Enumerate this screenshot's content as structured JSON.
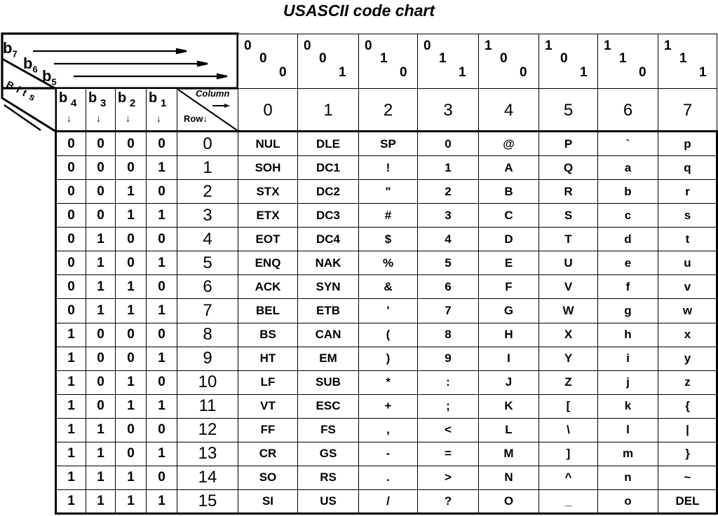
{
  "title": "USASCII code chart",
  "corner": {
    "b7": "b",
    "b7_sub": "7",
    "b6": "b",
    "b6_sub": "6",
    "b5": "b",
    "b5_sub": "5",
    "bits_label": "Bits",
    "column_label": "Column",
    "row_label": "Row"
  },
  "bit_headers": [
    {
      "label": "b",
      "sub": "4"
    },
    {
      "label": "b",
      "sub": "3"
    },
    {
      "label": "b",
      "sub": "2"
    },
    {
      "label": "b",
      "sub": "1"
    }
  ],
  "columns": [
    {
      "bits": [
        "0",
        "0",
        "0"
      ],
      "number": "0"
    },
    {
      "bits": [
        "0",
        "0",
        "1"
      ],
      "number": "1"
    },
    {
      "bits": [
        "0",
        "1",
        "0"
      ],
      "number": "2"
    },
    {
      "bits": [
        "0",
        "1",
        "1"
      ],
      "number": "3"
    },
    {
      "bits": [
        "1",
        "0",
        "0"
      ],
      "number": "4"
    },
    {
      "bits": [
        "1",
        "0",
        "1"
      ],
      "number": "5"
    },
    {
      "bits": [
        "1",
        "1",
        "0"
      ],
      "number": "6"
    },
    {
      "bits": [
        "1",
        "1",
        "1"
      ],
      "number": "7"
    }
  ],
  "rows": [
    {
      "bits": [
        "0",
        "0",
        "0",
        "0"
      ],
      "number": "0",
      "cells": [
        "NUL",
        "DLE",
        "SP",
        "0",
        "@",
        "P",
        "`",
        "p"
      ]
    },
    {
      "bits": [
        "0",
        "0",
        "0",
        "1"
      ],
      "number": "1",
      "cells": [
        "SOH",
        "DC1",
        "!",
        "1",
        "A",
        "Q",
        "a",
        "q"
      ]
    },
    {
      "bits": [
        "0",
        "0",
        "1",
        "0"
      ],
      "number": "2",
      "cells": [
        "STX",
        "DC2",
        "\"",
        "2",
        "B",
        "R",
        "b",
        "r"
      ]
    },
    {
      "bits": [
        "0",
        "0",
        "1",
        "1"
      ],
      "number": "3",
      "cells": [
        "ETX",
        "DC3",
        "#",
        "3",
        "C",
        "S",
        "c",
        "s"
      ]
    },
    {
      "bits": [
        "0",
        "1",
        "0",
        "0"
      ],
      "number": "4",
      "cells": [
        "EOT",
        "DC4",
        "$",
        "4",
        "D",
        "T",
        "d",
        "t"
      ]
    },
    {
      "bits": [
        "0",
        "1",
        "0",
        "1"
      ],
      "number": "5",
      "cells": [
        "ENQ",
        "NAK",
        "%",
        "5",
        "E",
        "U",
        "e",
        "u"
      ]
    },
    {
      "bits": [
        "0",
        "1",
        "1",
        "0"
      ],
      "number": "6",
      "cells": [
        "ACK",
        "SYN",
        "&",
        "6",
        "F",
        "V",
        "f",
        "v"
      ]
    },
    {
      "bits": [
        "0",
        "1",
        "1",
        "1"
      ],
      "number": "7",
      "cells": [
        "BEL",
        "ETB",
        "'",
        "7",
        "G",
        "W",
        "g",
        "w"
      ]
    },
    {
      "bits": [
        "1",
        "0",
        "0",
        "0"
      ],
      "number": "8",
      "cells": [
        "BS",
        "CAN",
        "(",
        "8",
        "H",
        "X",
        "h",
        "x"
      ]
    },
    {
      "bits": [
        "1",
        "0",
        "0",
        "1"
      ],
      "number": "9",
      "cells": [
        "HT",
        "EM",
        ")",
        "9",
        "I",
        "Y",
        "i",
        "y"
      ]
    },
    {
      "bits": [
        "1",
        "0",
        "1",
        "0"
      ],
      "number": "10",
      "cells": [
        "LF",
        "SUB",
        "*",
        ":",
        "J",
        "Z",
        "j",
        "z"
      ]
    },
    {
      "bits": [
        "1",
        "0",
        "1",
        "1"
      ],
      "number": "11",
      "cells": [
        "VT",
        "ESC",
        "+",
        ";",
        "K",
        "[",
        "k",
        "{"
      ]
    },
    {
      "bits": [
        "1",
        "1",
        "0",
        "0"
      ],
      "number": "12",
      "cells": [
        "FF",
        "FS",
        ",",
        "<",
        "L",
        "\\",
        "l",
        "|"
      ]
    },
    {
      "bits": [
        "1",
        "1",
        "0",
        "1"
      ],
      "number": "13",
      "cells": [
        "CR",
        "GS",
        "-",
        "=",
        "M",
        "]",
        "m",
        "}"
      ]
    },
    {
      "bits": [
        "1",
        "1",
        "1",
        "0"
      ],
      "number": "14",
      "cells": [
        "SO",
        "RS",
        ".",
        ">",
        "N",
        "^",
        "n",
        "~"
      ]
    },
    {
      "bits": [
        "1",
        "1",
        "1",
        "1"
      ],
      "number": "15",
      "cells": [
        "SI",
        "US",
        "/",
        "?",
        "O",
        "_",
        "o",
        "DEL"
      ]
    }
  ]
}
